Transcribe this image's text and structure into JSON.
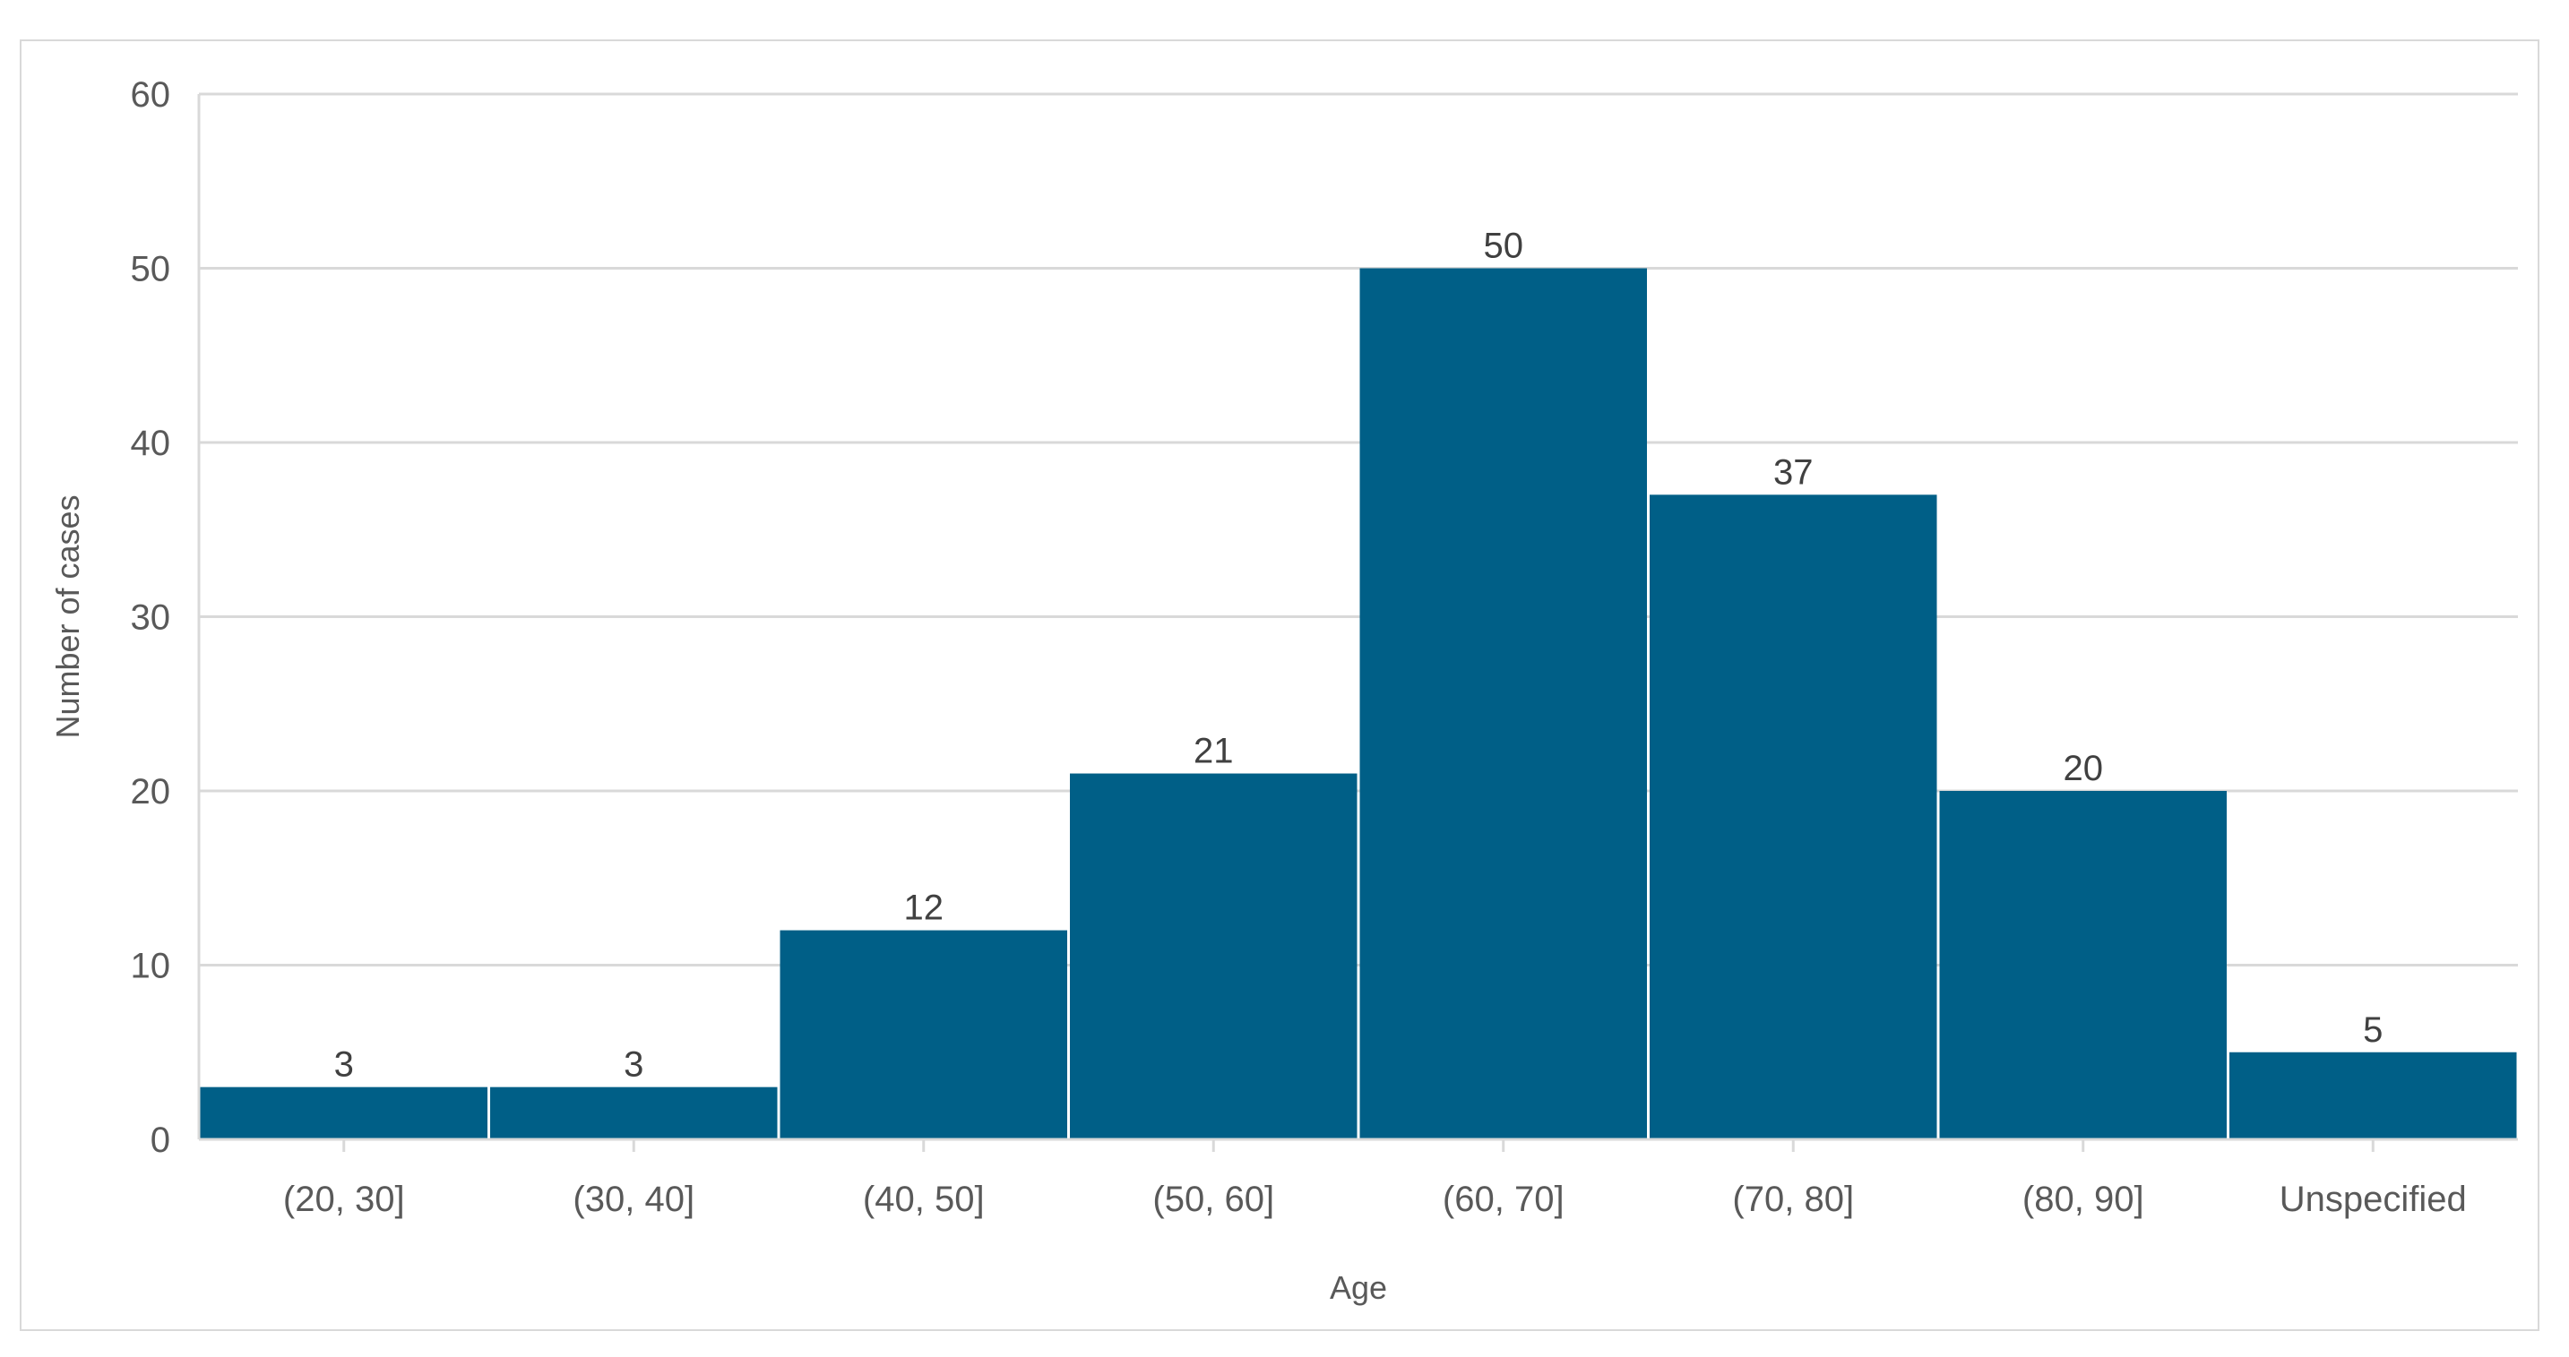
{
  "chart_data": {
    "type": "bar",
    "title": "",
    "xlabel": "Age",
    "ylabel": "Number of cases",
    "categories": [
      "(20, 30]",
      "(30, 40]",
      "(40, 50]",
      "(50, 60]",
      "(60, 70]",
      "(70, 80]",
      "(80, 90]",
      "Unspecified"
    ],
    "values": [
      3,
      3,
      12,
      21,
      50,
      37,
      20,
      5
    ],
    "ylim": [
      0,
      60
    ],
    "yticks": [
      0,
      10,
      20,
      30,
      40,
      50,
      60
    ],
    "grid": true,
    "legend": "none",
    "bar_color": "#005f87",
    "gridline_color": "#d9d9d9",
    "data_labels": true
  }
}
